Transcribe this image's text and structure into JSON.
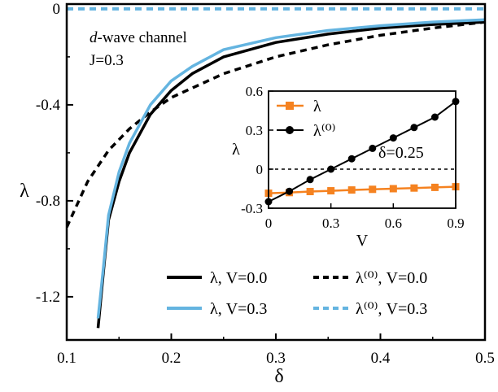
{
  "colors": {
    "black": "#000000",
    "blue": "#64b4e0",
    "orange": "#f58220",
    "white": "#ffffff"
  },
  "chart_data": [
    {
      "type": "line",
      "xlabel": "δ",
      "ylabel": "λ",
      "xlim": [
        0.1,
        0.5
      ],
      "ylim": [
        -1.38,
        0.02
      ],
      "xticks": [
        0.1,
        0.2,
        0.3,
        0.4,
        0.5
      ],
      "xtick_labels": [
        "0.1",
        "0.2",
        "0.3",
        "0.4",
        "0.5"
      ],
      "yticks": [
        0,
        -0.4,
        -0.8,
        -1.2
      ],
      "ytick_labels": [
        "0",
        "-0.4",
        "-0.8",
        "-1.2"
      ],
      "annotation": {
        "italic": "d",
        "text": "-wave channel",
        "line2": "J=0.3"
      },
      "legend_position": "bottom-right",
      "grid": false,
      "series": [
        {
          "name": "λ, V=0.0",
          "style": "solid",
          "color": "#000000",
          "x": [
            0.13,
            0.135,
            0.14,
            0.15,
            0.16,
            0.18,
            0.2,
            0.22,
            0.25,
            0.3,
            0.35,
            0.4,
            0.45,
            0.5
          ],
          "y": [
            -1.33,
            -1.1,
            -0.88,
            -0.72,
            -0.6,
            -0.44,
            -0.34,
            -0.27,
            -0.2,
            -0.14,
            -0.105,
            -0.08,
            -0.065,
            -0.055
          ]
        },
        {
          "name": "λ, V=0.3",
          "style": "solid",
          "color": "#64b4e0",
          "x": [
            0.13,
            0.135,
            0.14,
            0.15,
            0.16,
            0.18,
            0.2,
            0.22,
            0.25,
            0.3,
            0.35,
            0.4,
            0.45,
            0.5
          ],
          "y": [
            -1.29,
            -1.08,
            -0.86,
            -0.68,
            -0.56,
            -0.4,
            -0.3,
            -0.24,
            -0.17,
            -0.12,
            -0.09,
            -0.07,
            -0.055,
            -0.045
          ]
        },
        {
          "name": "λ⁽⁰⁾, V=0.0",
          "style": "dashed",
          "color": "#000000",
          "x": [
            0.1,
            0.12,
            0.14,
            0.16,
            0.18,
            0.2,
            0.25,
            0.3,
            0.35,
            0.4,
            0.45,
            0.5
          ],
          "y": [
            -0.91,
            -0.72,
            -0.59,
            -0.5,
            -0.43,
            -0.37,
            -0.27,
            -0.2,
            -0.15,
            -0.11,
            -0.08,
            -0.055
          ]
        },
        {
          "name": "λ⁽⁰⁾, V=0.3",
          "style": "dashed",
          "color": "#64b4e0",
          "x": [
            0.1,
            0.5
          ],
          "y": [
            0,
            0
          ]
        }
      ]
    },
    {
      "type": "line",
      "xlabel": "V",
      "ylabel": "λ",
      "xlim": [
        0,
        0.9
      ],
      "ylim": [
        -0.3,
        0.6
      ],
      "xticks": [
        0,
        0.3,
        0.6,
        0.9
      ],
      "xtick_labels": [
        "0",
        "0.3",
        "0.6",
        "0.9"
      ],
      "yticks": [
        -0.3,
        0,
        0.3,
        0.6
      ],
      "ytick_labels": [
        "-0.3",
        "0",
        "0.3",
        "0.6"
      ],
      "annotation": "δ=0.25",
      "legend_position": "top-left",
      "grid": false,
      "series": [
        {
          "name": "λ",
          "marker": "square",
          "color": "#f58220",
          "x": [
            0,
            0.1,
            0.2,
            0.3,
            0.4,
            0.5,
            0.6,
            0.7,
            0.8,
            0.9
          ],
          "y": [
            -0.185,
            -0.18,
            -0.172,
            -0.166,
            -0.16,
            -0.155,
            -0.15,
            -0.145,
            -0.14,
            -0.135
          ]
        },
        {
          "name": "λ⁽⁰⁾",
          "marker": "circle",
          "color": "#000000",
          "x": [
            0,
            0.1,
            0.2,
            0.3,
            0.4,
            0.5,
            0.6,
            0.7,
            0.8,
            0.9
          ],
          "y": [
            -0.25,
            -0.17,
            -0.08,
            0.0,
            0.08,
            0.16,
            0.24,
            0.32,
            0.4,
            0.52
          ]
        }
      ]
    }
  ]
}
